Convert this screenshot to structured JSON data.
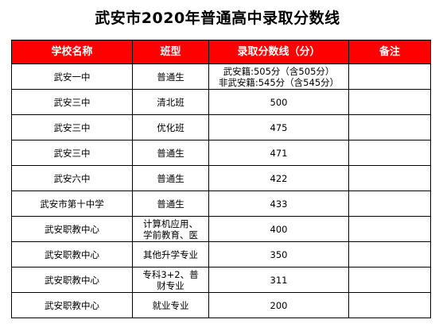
{
  "title": "武安市2020年普通高中录取分数线",
  "colors": {
    "header_bg": "#ff0000",
    "header_text": "#ffffff",
    "border": "#000000"
  },
  "table": {
    "headers": [
      "学校名称",
      "班型",
      "录取分数线（分）",
      "备注"
    ],
    "rows": [
      {
        "school": "武安一中",
        "class_type": "普通生",
        "score_lines": [
          "武安籍:505分（含505分）",
          "非武安籍:545分（含545分）"
        ],
        "note": ""
      },
      {
        "school": "武安三中",
        "class_type": "清北班",
        "score_lines": [
          "500"
        ],
        "note": ""
      },
      {
        "school": "武安三中",
        "class_type": "优化班",
        "score_lines": [
          "475"
        ],
        "note": ""
      },
      {
        "school": "武安三中",
        "class_type": "普通生",
        "score_lines": [
          "471"
        ],
        "note": ""
      },
      {
        "school": "武安六中",
        "class_type": "普通生",
        "score_lines": [
          "422"
        ],
        "note": ""
      },
      {
        "school": "武安市第十中学",
        "class_type": "普通生",
        "score_lines": [
          "433"
        ],
        "note": ""
      },
      {
        "school": "武安职教中心",
        "class_type_lines": [
          "计算机应用、",
          "学前教育、医"
        ],
        "score_lines": [
          "400"
        ],
        "note": ""
      },
      {
        "school": "武安职教中心",
        "class_type": "其他升学专业",
        "score_lines": [
          "350"
        ],
        "note": ""
      },
      {
        "school": "武安职教中心",
        "class_type_lines": [
          "专科3+2、普",
          "财专业"
        ],
        "score_lines": [
          "311"
        ],
        "note": ""
      },
      {
        "school": "武安职教中心",
        "class_type": "就业专业",
        "score_lines": [
          "200"
        ],
        "note": ""
      }
    ]
  }
}
